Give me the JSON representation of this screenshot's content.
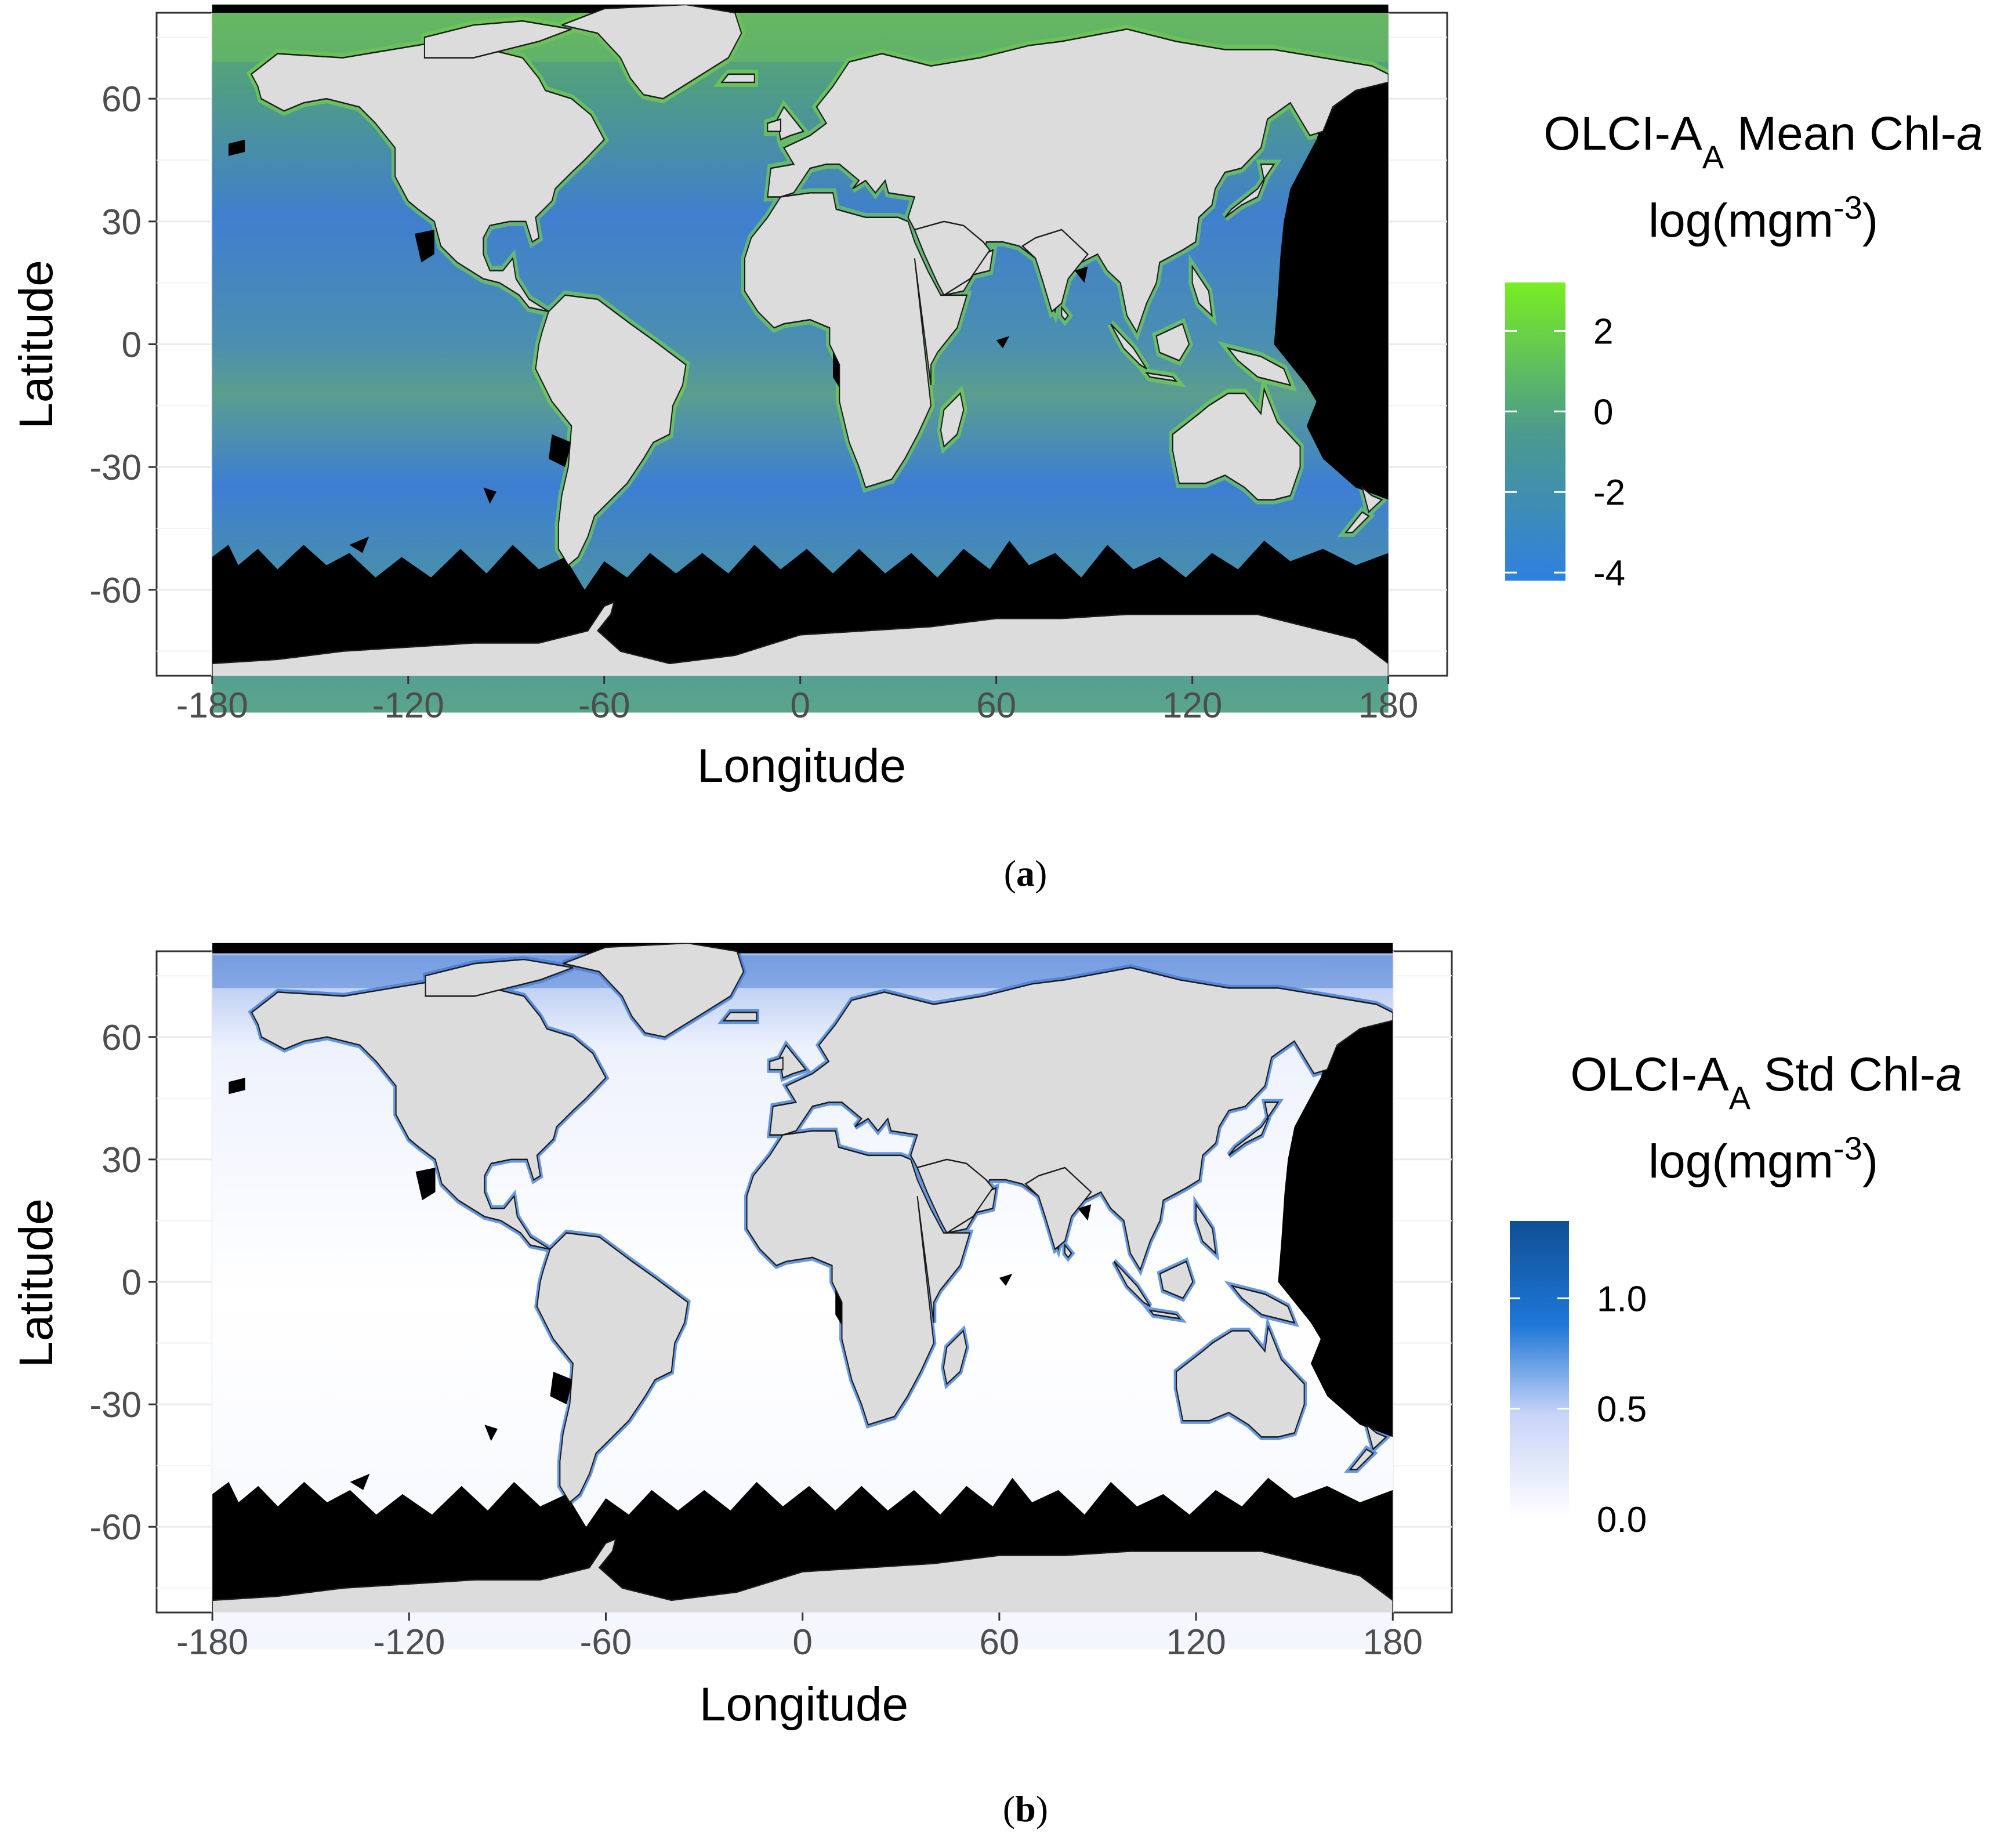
{
  "panels": [
    {
      "id": "a",
      "caption_letter": "a",
      "legend": {
        "line1": "OLCI-A",
        "subscript": "A",
        "line1_rest": " Mean Chl-",
        "italic": "a",
        "line2": "log(mgm",
        "superscript": "-3",
        "line2_end": ")",
        "ticks": [
          "2",
          "0",
          "-2",
          "-4"
        ],
        "tick_values": [
          2,
          0,
          -2,
          -4
        ],
        "range": [
          -4.2,
          3.2
        ],
        "color_low": "#2f80e0",
        "color_high": "#78ee22"
      },
      "ocean_low": "#3a7fd6",
      "ocean_high": "#6fc05a"
    },
    {
      "id": "b",
      "caption_letter": "b",
      "legend": {
        "line1": "OLCI-A",
        "subscript": "A",
        "line1_rest": " Std Chl-",
        "italic": "a",
        "line2": "log(mgm",
        "superscript": "-3",
        "line2_end": ")",
        "ticks": [
          "1.0",
          "0.5",
          "0.0"
        ],
        "tick_values": [
          1.0,
          0.5,
          0.0
        ],
        "range": [
          0.0,
          1.35
        ],
        "color_low": "#ffffff",
        "color_high": "#0f4f94"
      },
      "ocean_low": "#ffffff",
      "ocean_high": "#2f6ed6"
    }
  ],
  "axes": {
    "xlabel": "Longitude",
    "ylabel": "Latitude",
    "x_ticks": [
      "-180",
      "-120",
      "-60",
      "0",
      "60",
      "120",
      "180"
    ],
    "x_tick_values": [
      -180,
      -120,
      -60,
      0,
      60,
      120,
      180
    ],
    "y_ticks": [
      "60",
      "30",
      "0",
      "-30",
      "-60"
    ],
    "y_tick_values": [
      60,
      30,
      0,
      -30,
      -60
    ],
    "xlim": [
      -197,
      198
    ],
    "ylim": [
      -81,
      81
    ]
  },
  "colors": {
    "land": "#dcdcdc",
    "no_data": "#000000",
    "grid": "#ebebeb",
    "panel_border": "#333333"
  }
}
